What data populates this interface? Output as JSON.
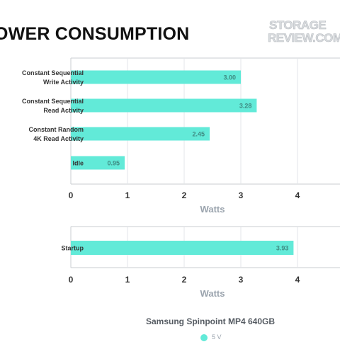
{
  "title": "OWER CONSUMPTION",
  "watermark": "STORAGEREVIEW.COM",
  "colors": {
    "bar": "#62ead8",
    "bar_label": "#3f8b82",
    "axis_text": "#333333",
    "axis_title": "#9aa3ad",
    "grid": "#e3e5e8",
    "frame": "#c8ccd1",
    "category_text": "#333333"
  },
  "chart_data": [
    {
      "type": "bar",
      "orientation": "horizontal",
      "categories": [
        [
          "Constant Sequential",
          "Write Activity"
        ],
        [
          "Constant Sequential",
          "Read Activity"
        ],
        [
          "Constant Random",
          "4K Read Activity"
        ],
        [
          "Idle"
        ]
      ],
      "series": [
        {
          "name": "5 V",
          "values": [
            3.0,
            3.28,
            2.45,
            0.95
          ]
        }
      ],
      "value_labels": [
        "3.00",
        "3.28",
        "2.45",
        "0.95"
      ],
      "xlabel": "Watts",
      "xticks": [
        "0",
        "1",
        "2",
        "3",
        "4"
      ],
      "xlim": [
        0,
        5
      ],
      "grid": true
    },
    {
      "type": "bar",
      "orientation": "horizontal",
      "categories": [
        [
          "Startup"
        ]
      ],
      "series": [
        {
          "name": "5 V",
          "values": [
            3.93
          ]
        }
      ],
      "value_labels": [
        "3.93"
      ],
      "xlabel": "Watts",
      "xticks": [
        "0",
        "1",
        "2",
        "3",
        "4"
      ],
      "xlim": [
        0,
        5
      ],
      "grid": true
    }
  ],
  "legend": {
    "title": "Samsung Spinpoint MP4 640GB",
    "items": [
      {
        "label": "5 V",
        "color": "#62ead8"
      }
    ]
  }
}
